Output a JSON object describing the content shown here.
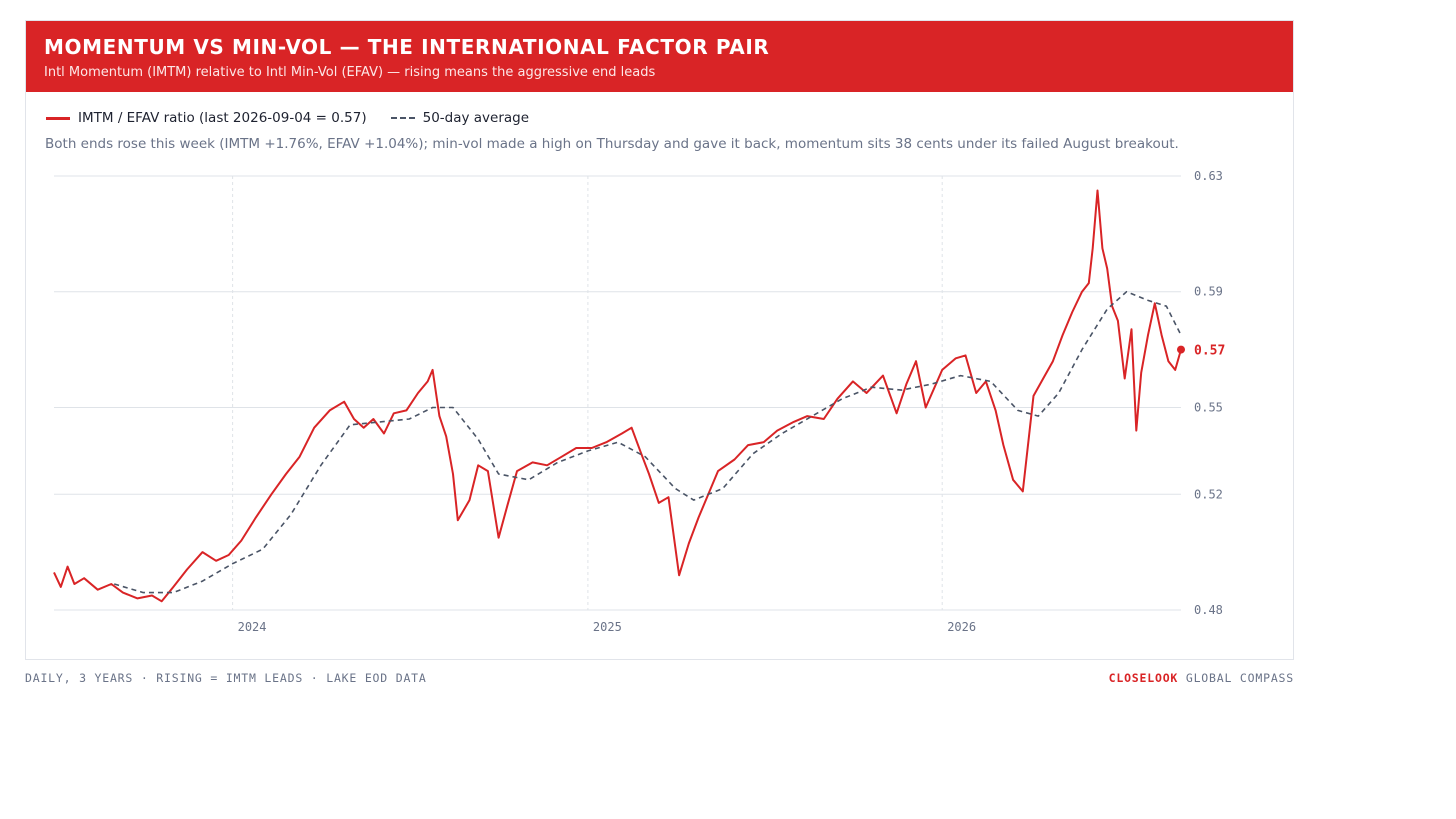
{
  "header": {
    "title": "MOMENTUM VS MIN-VOL — THE INTERNATIONAL FACTOR PAIR",
    "subtitle": "Intl Momentum (IMTM) relative to Intl Min-Vol (EFAV) — rising means the aggressive end leads"
  },
  "legend": {
    "ratio_label": "IMTM / EFAV ratio (last 2026-09-04 = 0.57)",
    "avg_label": "50-day average"
  },
  "note": "Both ends rose this week (IMTM +1.76%, EFAV +1.04%); min-vol made a high on Thursday and gave it back, momentum sits 38 cents under its failed August breakout.",
  "footer": {
    "left": "DAILY, 3 YEARS · RISING = IMTM LEADS · LAKE EOD DATA",
    "brand": "CLOSELOOK",
    "brand_suffix": " GLOBAL COMPASS"
  },
  "colors": {
    "accent": "#d92426",
    "average": "#4a5466",
    "grid": "#dfe3e8",
    "axis_text": "#6a7388"
  },
  "chart_data": {
    "type": "line",
    "title": "MOMENTUM VS MIN-VOL — THE INTERNATIONAL FACTOR PAIR",
    "y_axis_side": "right",
    "ylim": [
      0.48,
      0.63
    ],
    "y_ticks": [
      0.48,
      0.52,
      0.55,
      0.59,
      0.63
    ],
    "y_tick_labels": [
      "0.48",
      "0.52",
      "0.55",
      "0.59",
      "0.63"
    ],
    "x_tick_labels": [
      {
        "date": "2024-01-01",
        "label": "2024"
      },
      {
        "date": "2025-01-01",
        "label": "2025"
      },
      {
        "date": "2026-01-01",
        "label": "2026"
      }
    ],
    "last_value": {
      "date": "2026-09-04",
      "value": 0.57,
      "label": "0.57"
    },
    "grid": true,
    "legend_position": "top-left",
    "series": [
      {
        "name": "IMTM / EFAV ratio (last 2026-09-04 = 0.57)",
        "style": "solid",
        "points": [
          [
            "2023-07-01",
            0.493
          ],
          [
            "2023-07-08",
            0.488
          ],
          [
            "2023-07-15",
            0.495
          ],
          [
            "2023-07-22",
            0.489
          ],
          [
            "2023-08-01",
            0.491
          ],
          [
            "2023-08-15",
            0.487
          ],
          [
            "2023-08-29",
            0.489
          ],
          [
            "2023-09-10",
            0.486
          ],
          [
            "2023-09-25",
            0.484
          ],
          [
            "2023-10-10",
            0.485
          ],
          [
            "2023-10-20",
            0.483
          ],
          [
            "2023-11-01",
            0.488
          ],
          [
            "2023-11-15",
            0.494
          ],
          [
            "2023-12-01",
            0.5
          ],
          [
            "2023-12-15",
            0.497
          ],
          [
            "2023-12-28",
            0.499
          ],
          [
            "2024-01-10",
            0.504
          ],
          [
            "2024-01-25",
            0.512
          ],
          [
            "2024-02-10",
            0.52
          ],
          [
            "2024-02-25",
            0.527
          ],
          [
            "2024-03-10",
            0.533
          ],
          [
            "2024-03-25",
            0.543
          ],
          [
            "2024-04-10",
            0.549
          ],
          [
            "2024-04-25",
            0.552
          ],
          [
            "2024-05-05",
            0.546
          ],
          [
            "2024-05-15",
            0.543
          ],
          [
            "2024-05-25",
            0.546
          ],
          [
            "2024-06-05",
            0.541
          ],
          [
            "2024-06-15",
            0.548
          ],
          [
            "2024-06-28",
            0.549
          ],
          [
            "2024-07-10",
            0.555
          ],
          [
            "2024-07-20",
            0.559
          ],
          [
            "2024-07-25",
            0.563
          ],
          [
            "2024-08-01",
            0.547
          ],
          [
            "2024-08-08",
            0.54
          ],
          [
            "2024-08-15",
            0.527
          ],
          [
            "2024-08-20",
            0.511
          ],
          [
            "2024-09-01",
            0.518
          ],
          [
            "2024-09-10",
            0.53
          ],
          [
            "2024-09-20",
            0.528
          ],
          [
            "2024-10-01",
            0.505
          ],
          [
            "2024-10-10",
            0.516
          ],
          [
            "2024-10-20",
            0.528
          ],
          [
            "2024-11-05",
            0.531
          ],
          [
            "2024-11-20",
            0.53
          ],
          [
            "2024-12-05",
            0.533
          ],
          [
            "2024-12-20",
            0.536
          ],
          [
            "2025-01-05",
            0.536
          ],
          [
            "2025-01-20",
            0.538
          ],
          [
            "2025-02-05",
            0.541
          ],
          [
            "2025-02-15",
            0.543
          ],
          [
            "2025-02-25",
            0.534
          ],
          [
            "2025-03-05",
            0.527
          ],
          [
            "2025-03-15",
            0.517
          ],
          [
            "2025-03-25",
            0.519
          ],
          [
            "2025-04-05",
            0.492
          ],
          [
            "2025-04-15",
            0.503
          ],
          [
            "2025-04-25",
            0.512
          ],
          [
            "2025-05-05",
            0.52
          ],
          [
            "2025-05-15",
            0.528
          ],
          [
            "2025-06-01",
            0.532
          ],
          [
            "2025-06-15",
            0.537
          ],
          [
            "2025-07-01",
            0.538
          ],
          [
            "2025-07-15",
            0.542
          ],
          [
            "2025-08-01",
            0.545
          ],
          [
            "2025-08-15",
            0.547
          ],
          [
            "2025-09-01",
            0.546
          ],
          [
            "2025-09-15",
            0.553
          ],
          [
            "2025-10-01",
            0.559
          ],
          [
            "2025-10-15",
            0.555
          ],
          [
            "2025-11-01",
            0.561
          ],
          [
            "2025-11-15",
            0.548
          ],
          [
            "2025-11-25",
            0.558
          ],
          [
            "2025-12-05",
            0.566
          ],
          [
            "2025-12-15",
            0.55
          ],
          [
            "2026-01-01",
            0.563
          ],
          [
            "2026-01-15",
            0.567
          ],
          [
            "2026-01-25",
            0.568
          ],
          [
            "2026-02-05",
            0.555
          ],
          [
            "2026-02-15",
            0.559
          ],
          [
            "2026-02-25",
            0.549
          ],
          [
            "2026-03-05",
            0.537
          ],
          [
            "2026-03-15",
            0.525
          ],
          [
            "2026-03-25",
            0.521
          ],
          [
            "2026-04-05",
            0.554
          ],
          [
            "2026-04-15",
            0.56
          ],
          [
            "2026-04-25",
            0.566
          ],
          [
            "2026-05-05",
            0.575
          ],
          [
            "2026-05-15",
            0.583
          ],
          [
            "2026-05-25",
            0.59
          ],
          [
            "2026-06-01",
            0.593
          ],
          [
            "2026-06-05",
            0.605
          ],
          [
            "2026-06-10",
            0.625
          ],
          [
            "2026-06-15",
            0.605
          ],
          [
            "2026-06-20",
            0.598
          ],
          [
            "2026-06-25",
            0.585
          ],
          [
            "2026-07-01",
            0.58
          ],
          [
            "2026-07-08",
            0.56
          ],
          [
            "2026-07-15",
            0.577
          ],
          [
            "2026-07-20",
            0.542
          ],
          [
            "2026-07-25",
            0.562
          ],
          [
            "2026-08-01",
            0.575
          ],
          [
            "2026-08-08",
            0.586
          ],
          [
            "2026-08-15",
            0.575
          ],
          [
            "2026-08-22",
            0.566
          ],
          [
            "2026-08-29",
            0.563
          ],
          [
            "2026-09-04",
            0.57
          ]
        ]
      },
      {
        "name": "50-day average",
        "style": "dashed",
        "points": [
          [
            "2023-09-01",
            0.489
          ],
          [
            "2023-10-01",
            0.486
          ],
          [
            "2023-11-01",
            0.486
          ],
          [
            "2023-12-01",
            0.49
          ],
          [
            "2024-01-01",
            0.496
          ],
          [
            "2024-02-01",
            0.501
          ],
          [
            "2024-03-01",
            0.513
          ],
          [
            "2024-04-01",
            0.53
          ],
          [
            "2024-05-01",
            0.544
          ],
          [
            "2024-06-01",
            0.545
          ],
          [
            "2024-07-01",
            0.546
          ],
          [
            "2024-07-25",
            0.55
          ],
          [
            "2024-08-15",
            0.55
          ],
          [
            "2024-09-10",
            0.539
          ],
          [
            "2024-10-01",
            0.527
          ],
          [
            "2024-11-01",
            0.525
          ],
          [
            "2024-12-01",
            0.531
          ],
          [
            "2025-01-01",
            0.535
          ],
          [
            "2025-02-01",
            0.538
          ],
          [
            "2025-03-01",
            0.533
          ],
          [
            "2025-04-01",
            0.522
          ],
          [
            "2025-04-20",
            0.518
          ],
          [
            "2025-05-20",
            0.522
          ],
          [
            "2025-06-20",
            0.534
          ],
          [
            "2025-07-20",
            0.541
          ],
          [
            "2025-08-20",
            0.547
          ],
          [
            "2025-09-20",
            0.553
          ],
          [
            "2025-10-20",
            0.557
          ],
          [
            "2025-11-20",
            0.556
          ],
          [
            "2025-12-20",
            0.558
          ],
          [
            "2026-01-20",
            0.561
          ],
          [
            "2026-02-20",
            0.559
          ],
          [
            "2026-03-20",
            0.549
          ],
          [
            "2026-04-10",
            0.547
          ],
          [
            "2026-05-01",
            0.555
          ],
          [
            "2026-05-25",
            0.57
          ],
          [
            "2026-06-20",
            0.584
          ],
          [
            "2026-07-10",
            0.59
          ],
          [
            "2026-08-01",
            0.587
          ],
          [
            "2026-08-20",
            0.585
          ],
          [
            "2026-09-04",
            0.575
          ]
        ]
      }
    ]
  }
}
